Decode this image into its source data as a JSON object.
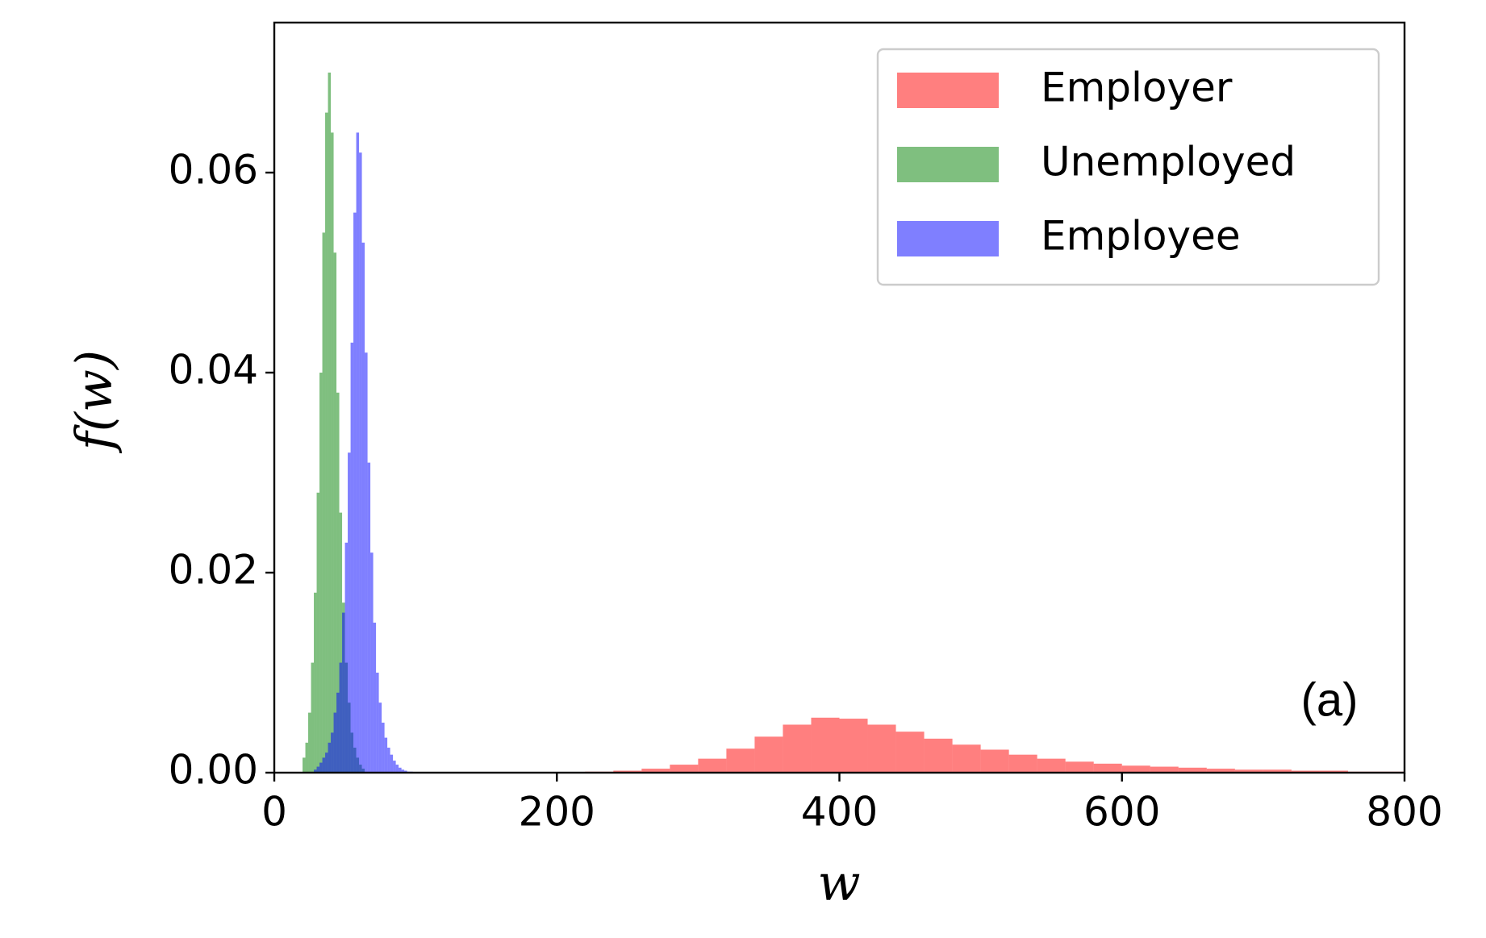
{
  "chart_data": {
    "type": "histogram",
    "xlabel": "w",
    "ylabel": "f(w)",
    "annotation": "(a)",
    "xlim": [
      0,
      800
    ],
    "ylim": [
      0,
      0.075
    ],
    "xticks": [
      0,
      200,
      400,
      600,
      800
    ],
    "yticks": [
      {
        "value": 0,
        "label": "0.00"
      },
      {
        "value": 0.02,
        "label": "0.02"
      },
      {
        "value": 0.04,
        "label": "0.04"
      },
      {
        "value": 0.06,
        "label": "0.06"
      }
    ],
    "legend": "upper right",
    "alpha": 0.5,
    "series": [
      {
        "name": "Employer",
        "color": "#ff0000",
        "bins": [
          220,
          240,
          260,
          280,
          300,
          320,
          340,
          360,
          380,
          400,
          420,
          440,
          460,
          480,
          500,
          520,
          540,
          560,
          580,
          600,
          620,
          640,
          660,
          680,
          700,
          720,
          740,
          760,
          780,
          800
        ],
        "values": [
          0.0001,
          0.0002,
          0.0004,
          0.0008,
          0.0014,
          0.0024,
          0.0036,
          0.0048,
          0.0055,
          0.0054,
          0.0048,
          0.0041,
          0.0034,
          0.0028,
          0.0023,
          0.0018,
          0.0014,
          0.0011,
          0.0009,
          0.0007,
          0.0006,
          0.0005,
          0.0004,
          0.0003,
          0.0003,
          0.0002,
          0.0002,
          0.0001,
          0.0001
        ]
      },
      {
        "name": "Unemployed",
        "color": "#008000",
        "bins": [
          20,
          22,
          24,
          26,
          28,
          30,
          32,
          34,
          36,
          38,
          40,
          42,
          44,
          46,
          48,
          50,
          52,
          54,
          56,
          58,
          60,
          62,
          64
        ],
        "values": [
          0.0015,
          0.003,
          0.006,
          0.011,
          0.018,
          0.028,
          0.04,
          0.054,
          0.066,
          0.07,
          0.064,
          0.052,
          0.038,
          0.026,
          0.017,
          0.011,
          0.007,
          0.004,
          0.0025,
          0.0015,
          0.0008,
          0.0004
        ]
      },
      {
        "name": "Employee",
        "color": "#0000ff",
        "bins": [
          28,
          30,
          32,
          34,
          36,
          38,
          40,
          42,
          44,
          46,
          48,
          50,
          52,
          54,
          56,
          58,
          60,
          62,
          64,
          66,
          68,
          70,
          72,
          74,
          76,
          78,
          80,
          82,
          84,
          86,
          88,
          90,
          92,
          94,
          96,
          98
        ],
        "values": [
          0.0003,
          0.0006,
          0.001,
          0.0015,
          0.002,
          0.003,
          0.004,
          0.006,
          0.008,
          0.011,
          0.016,
          0.023,
          0.032,
          0.043,
          0.056,
          0.064,
          0.062,
          0.053,
          0.042,
          0.031,
          0.022,
          0.015,
          0.01,
          0.007,
          0.005,
          0.0035,
          0.0025,
          0.0018,
          0.0012,
          0.0008,
          0.0005,
          0.0003,
          0.0002,
          0.0001,
          0.0001
        ]
      }
    ]
  }
}
